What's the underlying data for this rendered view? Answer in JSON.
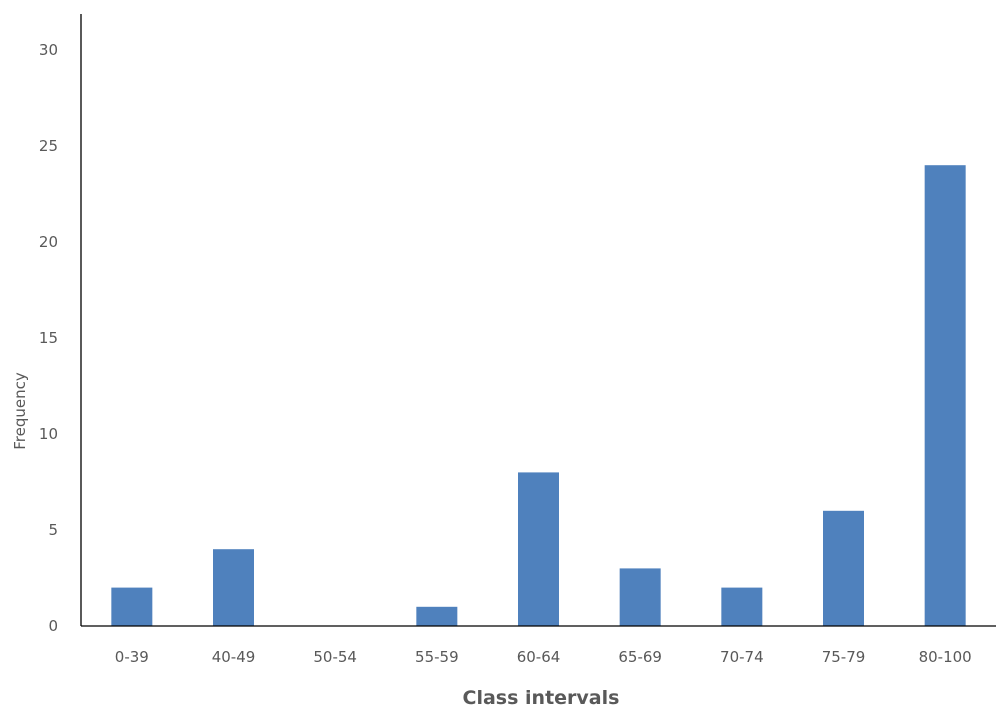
{
  "chart_data": {
    "type": "bar",
    "title": "",
    "xlabel": "Class intervals",
    "ylabel": "Frequency",
    "categories": [
      "0-39",
      "40-49",
      "50-54",
      "55-59",
      "60-64",
      "65-69",
      "70-74",
      "75-79",
      "80-100"
    ],
    "values": [
      2,
      4,
      0,
      1,
      8,
      3,
      2,
      6,
      24
    ],
    "ylim": [
      0,
      30
    ],
    "yticks": [
      0,
      5,
      10,
      15,
      20,
      25,
      30
    ],
    "grid": false,
    "legend": "none",
    "colors": {
      "bar": "#4f81bd",
      "axis": "#000000",
      "text": "#595959"
    }
  }
}
